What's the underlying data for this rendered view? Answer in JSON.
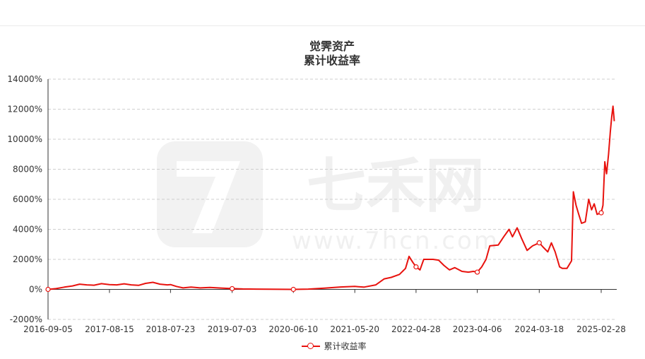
{
  "chart_data": {
    "type": "line",
    "title": "觉霁资产",
    "subtitle": "累计收益率",
    "xlabel": "",
    "ylabel": "",
    "ylim": [
      -2000,
      14000
    ],
    "y_ticks": [
      "-2000%",
      "0%",
      "2000%",
      "4000%",
      "6000%",
      "8000%",
      "10000%",
      "12000%",
      "14000%"
    ],
    "y_tick_values": [
      -2000,
      0,
      2000,
      4000,
      6000,
      8000,
      10000,
      12000,
      14000
    ],
    "x_ticks": [
      "2016-09-05",
      "2017-08-15",
      "2018-07-23",
      "2019-07-03",
      "2020-06-10",
      "2021-05-20",
      "2022-04-28",
      "2023-04-06",
      "2024-03-18",
      "2025-02-28"
    ],
    "grid": true,
    "legend": "bottom",
    "series": [
      {
        "name": "累计收益率",
        "color": "#e8120e",
        "points": [
          [
            "2016-09-05",
            0
          ],
          [
            "2016-10-20",
            50
          ],
          [
            "2016-12-05",
            150
          ],
          [
            "2017-01-20",
            230
          ],
          [
            "2017-03-01",
            350
          ],
          [
            "2017-04-10",
            300
          ],
          [
            "2017-05-20",
            280
          ],
          [
            "2017-07-01",
            380
          ],
          [
            "2017-08-15",
            320
          ],
          [
            "2017-09-25",
            300
          ],
          [
            "2017-11-05",
            370
          ],
          [
            "2017-12-15",
            300
          ],
          [
            "2018-01-25",
            270
          ],
          [
            "2018-03-05",
            400
          ],
          [
            "2018-04-15",
            470
          ],
          [
            "2018-05-25",
            350
          ],
          [
            "2018-07-05",
            300
          ],
          [
            "2018-07-23",
            320
          ],
          [
            "2018-08-25",
            200
          ],
          [
            "2018-10-01",
            100
          ],
          [
            "2018-11-15",
            150
          ],
          [
            "2019-01-05",
            100
          ],
          [
            "2019-03-01",
            130
          ],
          [
            "2019-05-01",
            90
          ],
          [
            "2019-07-03",
            50
          ],
          [
            "2019-09-01",
            30
          ],
          [
            "2019-11-15",
            20
          ],
          [
            "2020-02-01",
            10
          ],
          [
            "2020-06-10",
            0
          ],
          [
            "2020-09-01",
            20
          ],
          [
            "2020-12-01",
            80
          ],
          [
            "2021-03-01",
            160
          ],
          [
            "2021-05-20",
            200
          ],
          [
            "2021-07-10",
            150
          ],
          [
            "2021-09-15",
            300
          ],
          [
            "2021-11-01",
            700
          ],
          [
            "2021-12-10",
            800
          ],
          [
            "2022-01-25",
            1000
          ],
          [
            "2022-02-28",
            1400
          ],
          [
            "2022-03-20",
            2200
          ],
          [
            "2022-04-10",
            1800
          ],
          [
            "2022-04-28",
            1500
          ],
          [
            "2022-05-20",
            1300
          ],
          [
            "2022-06-10",
            2000
          ],
          [
            "2022-08-01",
            2000
          ],
          [
            "2022-09-01",
            1950
          ],
          [
            "2022-10-01",
            1600
          ],
          [
            "2022-11-01",
            1300
          ],
          [
            "2022-12-01",
            1450
          ],
          [
            "2023-01-10",
            1200
          ],
          [
            "2023-02-15",
            1150
          ],
          [
            "2023-03-15",
            1200
          ],
          [
            "2023-04-06",
            1150
          ],
          [
            "2023-05-01",
            1500
          ],
          [
            "2023-05-25",
            2000
          ],
          [
            "2023-06-15",
            2900
          ],
          [
            "2023-08-01",
            2950
          ],
          [
            "2023-09-01",
            3500
          ],
          [
            "2023-10-01",
            4000
          ],
          [
            "2023-10-20",
            3500
          ],
          [
            "2023-11-15",
            4100
          ],
          [
            "2023-12-10",
            3400
          ],
          [
            "2024-01-10",
            2600
          ],
          [
            "2024-02-10",
            2900
          ],
          [
            "2024-03-18",
            3100
          ],
          [
            "2024-04-10",
            2800
          ],
          [
            "2024-05-05",
            2500
          ],
          [
            "2024-05-25",
            3100
          ],
          [
            "2024-06-15",
            2500
          ],
          [
            "2024-07-10",
            1500
          ],
          [
            "2024-07-25",
            1400
          ],
          [
            "2024-08-20",
            1400
          ],
          [
            "2024-09-15",
            1900
          ],
          [
            "2024-09-25",
            6500
          ],
          [
            "2024-10-10",
            5600
          ],
          [
            "2024-10-25",
            5000
          ],
          [
            "2024-11-10",
            4400
          ],
          [
            "2024-12-01",
            4500
          ],
          [
            "2024-12-20",
            6000
          ],
          [
            "2025-01-05",
            5300
          ],
          [
            "2025-01-20",
            5700
          ],
          [
            "2025-02-05",
            5000
          ],
          [
            "2025-02-28",
            5100
          ],
          [
            "2025-03-10",
            5600
          ],
          [
            "2025-03-20",
            8500
          ],
          [
            "2025-03-30",
            7700
          ],
          [
            "2025-04-10",
            9000
          ],
          [
            "2025-04-20",
            10500
          ],
          [
            "2025-04-28",
            11500
          ],
          [
            "2025-05-05",
            12200
          ],
          [
            "2025-05-12",
            11200
          ]
        ],
        "markers": [
          [
            "2016-09-05",
            0
          ],
          [
            "2019-07-03",
            50
          ],
          [
            "2020-06-10",
            0
          ],
          [
            "2022-04-28",
            1500
          ],
          [
            "2023-04-06",
            1150
          ],
          [
            "2024-03-18",
            3100
          ],
          [
            "2025-02-28",
            5100
          ]
        ]
      }
    ]
  },
  "watermark": {
    "brand": "七禾网",
    "url": "www.7hcn.com"
  }
}
